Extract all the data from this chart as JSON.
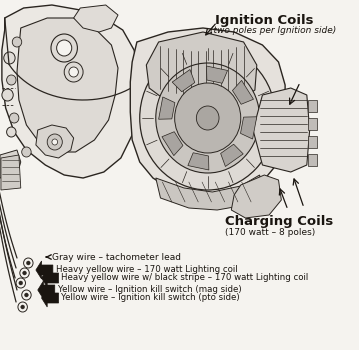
{
  "bg_color": "#f5f3ef",
  "line_color": "#2a2520",
  "dark_color": "#1a1510",
  "title": "Ignition Coils",
  "title_sub": "(two poles per Ignition side)",
  "label2": "Charging Coils",
  "label2_sub": "(170 watt – 8 poles)",
  "legend": [
    {
      "text": "Gray wire – tachometer lead",
      "size": "small"
    },
    {
      "text": "Heavy yellow wire – 170 watt Lighting coil",
      "size": "large"
    },
    {
      "text": "Heavy yellow wire w/ black stripe – 170 watt Lighting coil",
      "size": "large"
    },
    {
      "text": "Yellow wire – Ignition kill switch (mag side)",
      "size": "large"
    },
    {
      "text": "Yellow wire – Ignition kill switch (pto side)",
      "size": "large"
    }
  ],
  "fig_width": 3.59,
  "fig_height": 3.5,
  "dpi": 100
}
